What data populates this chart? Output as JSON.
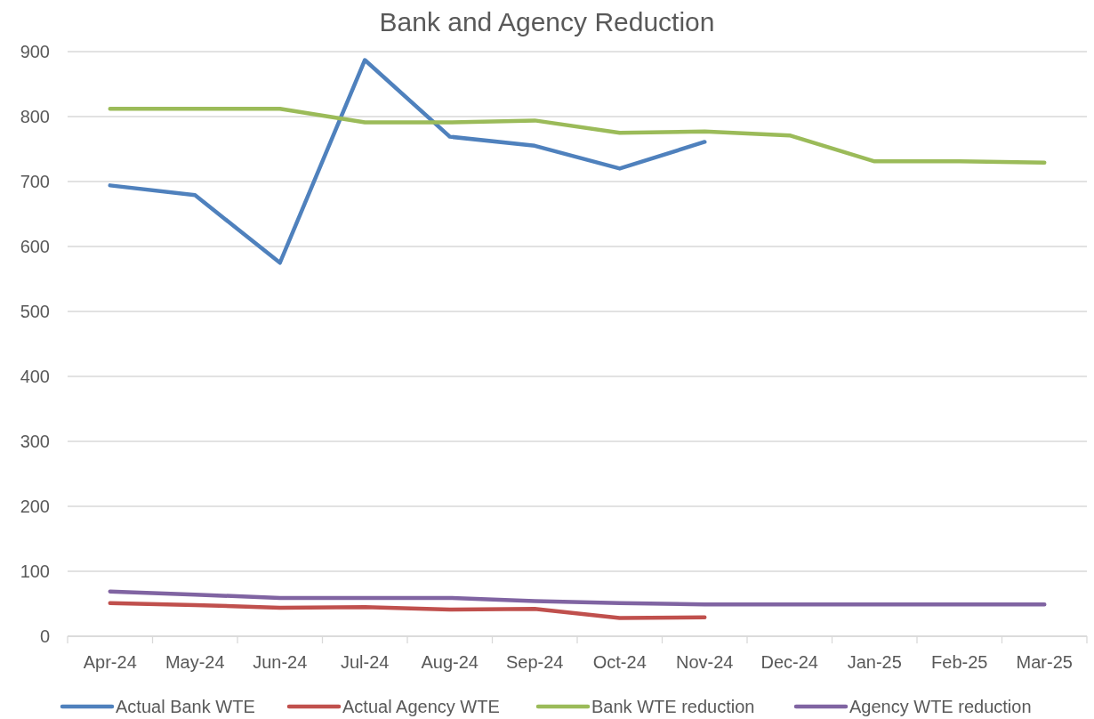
{
  "chart_data": {
    "type": "line",
    "title": "Bank and Agency Reduction",
    "categories": [
      "Apr-24",
      "May-24",
      "Jun-24",
      "Jul-24",
      "Aug-24",
      "Sep-24",
      "Oct-24",
      "Nov-24",
      "Dec-24",
      "Jan-25",
      "Feb-25",
      "Mar-25"
    ],
    "series": [
      {
        "name": "Actual Bank WTE",
        "color": "#4f81bd",
        "values": [
          694,
          679,
          575,
          887,
          769,
          755,
          720,
          761,
          null,
          null,
          null,
          null
        ]
      },
      {
        "name": "Actual Agency WTE",
        "color": "#c0504d",
        "values": [
          51,
          48,
          44,
          45,
          41,
          42,
          28,
          29,
          null,
          null,
          null,
          null
        ]
      },
      {
        "name": "Bank WTE reduction",
        "color": "#9bbb59",
        "values": [
          812,
          812,
          812,
          791,
          791,
          794,
          775,
          777,
          771,
          731,
          731,
          729
        ]
      },
      {
        "name": "Agency WTE reduction",
        "color": "#8064a2",
        "values": [
          69,
          64,
          59,
          59,
          59,
          54,
          51,
          49,
          49,
          49,
          49,
          49
        ]
      }
    ],
    "ylim": [
      0,
      900
    ],
    "yticks": [
      0,
      100,
      200,
      300,
      400,
      500,
      600,
      700,
      800,
      900
    ],
    "grid": "y",
    "legend": "bottom",
    "marker": "none",
    "line_style": "solid"
  }
}
